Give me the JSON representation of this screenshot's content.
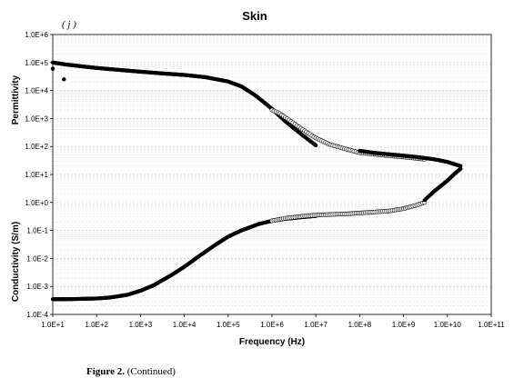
{
  "caption": {
    "label": "Figure 2.",
    "text": "(Continued)"
  },
  "chart_data": {
    "type": "scatter",
    "title": "Skin",
    "panel_label": "( j )",
    "xlabel": "Frequency (Hz)",
    "ylabel_top": "Permittivity",
    "ylabel_bottom": "Conductivity (S/m)",
    "x_scale": "log",
    "y_scale": "log",
    "xlim": [
      10,
      100000000000
    ],
    "ylim": [
      0.0001,
      1000000
    ],
    "grid": true,
    "x_tick_labels": [
      "1.0E+1",
      "1.0E+2",
      "1.0E+3",
      "1.0E+4",
      "1.0E+5",
      "1.0E+6",
      "1.0E+7",
      "1.0E+8",
      "1.0E+9",
      "1.0E+10",
      "1.0E+11"
    ],
    "y_tick_labels": [
      "1.0E-4",
      "1.0E-3",
      "1.0E-2",
      "1.0E-1",
      "1.0E+0",
      "1.0E+1",
      "1.0E+2",
      "1.0E+3",
      "1.0E+4",
      "1.0E+5",
      "1.0E+6"
    ],
    "colors": {
      "filled_marker": "#000000",
      "open_marker_edge": "#000000",
      "grid": "#cccccc"
    },
    "series": [
      {
        "quantity": "permittivity",
        "marker": "filled",
        "x": [
          10,
          20,
          50,
          100,
          300,
          1000,
          3000,
          10000,
          30000,
          100000,
          200000,
          400000,
          700000,
          1000000,
          2000000,
          5000000,
          10000000
        ],
        "y": [
          100000,
          85000,
          72000,
          64000,
          55000,
          47000,
          41000,
          36000,
          30000,
          21000,
          14000,
          7000,
          3500,
          2200,
          800,
          250,
          110
        ]
      },
      {
        "quantity": "permittivity",
        "marker": "open",
        "x": [
          1000000,
          1500000,
          2000000,
          3000000,
          5000000,
          10000000,
          20000000,
          50000000,
          100000000,
          300000000,
          1000000000,
          3000000000
        ],
        "y": [
          2000,
          1500,
          1100,
          700,
          400,
          200,
          120,
          80,
          60,
          50,
          42,
          35
        ]
      },
      {
        "quantity": "permittivity",
        "marker": "filled",
        "x": [
          100000000,
          200000000,
          500000000,
          1000000000,
          2000000000,
          5000000000,
          10000000000,
          20000000000
        ],
        "y": [
          70,
          60,
          52,
          47,
          42,
          35,
          28,
          20
        ]
      },
      {
        "quantity": "conductivity",
        "marker": "filled",
        "x": [
          10,
          20,
          50,
          100,
          200,
          500,
          1000,
          2000,
          5000,
          10000,
          20000,
          50000,
          100000,
          200000,
          500000,
          1000000,
          2000000,
          5000000,
          10000000
        ],
        "y": [
          0.00035,
          0.00035,
          0.00036,
          0.00037,
          0.0004,
          0.0005,
          0.0007,
          0.0011,
          0.0025,
          0.005,
          0.011,
          0.03,
          0.06,
          0.1,
          0.17,
          0.22,
          0.26,
          0.3,
          0.33
        ]
      },
      {
        "quantity": "conductivity",
        "marker": "open",
        "x": [
          1000000,
          2000000,
          5000000,
          10000000,
          20000000,
          50000000,
          100000000,
          200000000,
          500000000,
          1000000000,
          2000000000,
          3000000000
        ],
        "y": [
          0.22,
          0.27,
          0.32,
          0.35,
          0.37,
          0.39,
          0.42,
          0.45,
          0.5,
          0.6,
          0.8,
          1.0
        ]
      },
      {
        "quantity": "conductivity",
        "marker": "filled",
        "x": [
          3000000000,
          5000000000,
          10000000000,
          15000000000,
          20000000000
        ],
        "y": [
          1.2,
          2.5,
          6,
          11,
          16
        ]
      }
    ],
    "outliers": [
      {
        "x": 10,
        "y": 60000
      },
      {
        "x": 18,
        "y": 25000
      }
    ]
  }
}
